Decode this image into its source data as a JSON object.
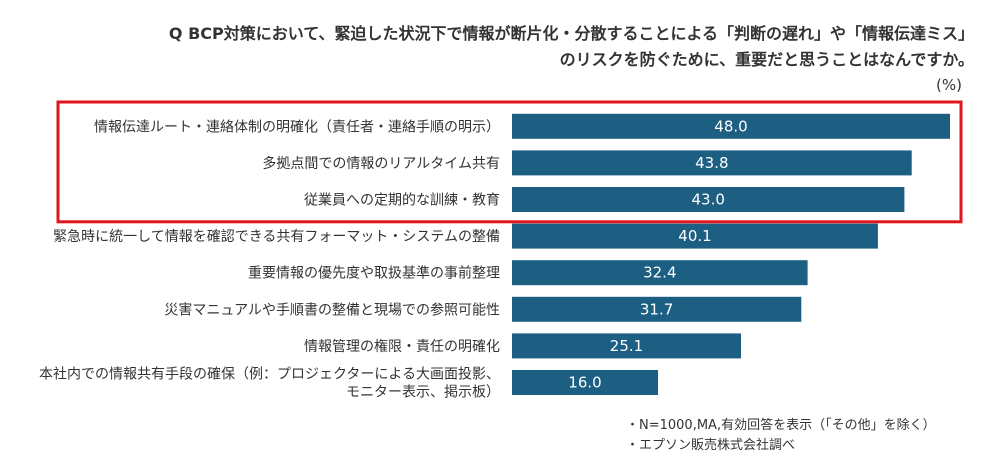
{
  "title_line1": "Q BCP対策において、緊迫した状況下で情報が断片化・分散することによる「判断の遅れ」や「情報伝達ミス」",
  "title_line2": "のリスクを防ぐために、重要だと思うことはなんですか。",
  "unit": "(%)",
  "notes": [
    "・N=1000,MA,有効回答を表示（「その他」を除く）",
    "・エプソン販売株式会社調べ"
  ],
  "colors": {
    "bar": "#1d5f82",
    "highlight_box": "#e0161e",
    "value_label": "#ffffff"
  },
  "chart_data": {
    "type": "bar",
    "orientation": "horizontal",
    "categories": [
      [
        "情報伝達ルート・連絡体制の明確化（責任者・連絡手順の明示）"
      ],
      [
        "多拠点間での情報のリアルタイム共有"
      ],
      [
        "従業員への定期的な訓練・教育"
      ],
      [
        "緊急時に統一して情報を確認できる共有フォーマット・システムの整備"
      ],
      [
        "重要情報の優先度や取扱基準の事前整理"
      ],
      [
        "災害マニュアルや手順書の整備と現場での参照可能性"
      ],
      [
        "情報管理の権限・責任の明確化"
      ],
      [
        "本社内での情報共有手段の確保（例：プロジェクターによる大画面投影、",
        "モニター表示、掲示板）"
      ]
    ],
    "values": [
      48.0,
      43.8,
      43.0,
      40.1,
      32.4,
      31.7,
      25.1,
      16.0
    ],
    "value_labels": [
      "48.0",
      "43.8",
      "43.0",
      "40.1",
      "32.4",
      "31.7",
      "25.1",
      "16.0"
    ],
    "xlim": [
      0,
      48.0
    ],
    "highlighted_categories": [
      0,
      1,
      2
    ],
    "grid": false
  }
}
